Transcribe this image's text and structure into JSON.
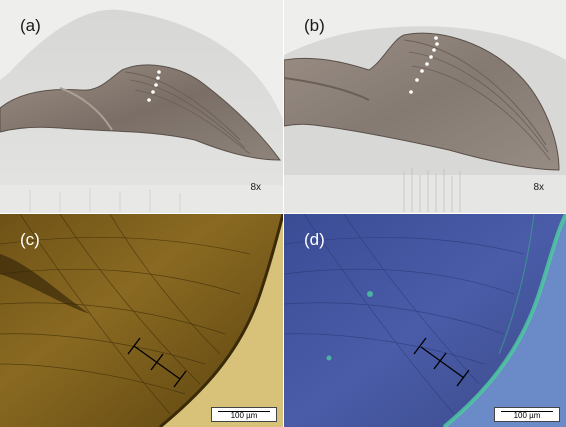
{
  "panels": [
    {
      "label": "(a)",
      "magnification": "8x"
    },
    {
      "label": "(b)",
      "magnification": "8x"
    },
    {
      "label": "(c)",
      "scale_bar": "100 µm"
    },
    {
      "label": "(d)",
      "scale_bar": "100 µm"
    }
  ]
}
